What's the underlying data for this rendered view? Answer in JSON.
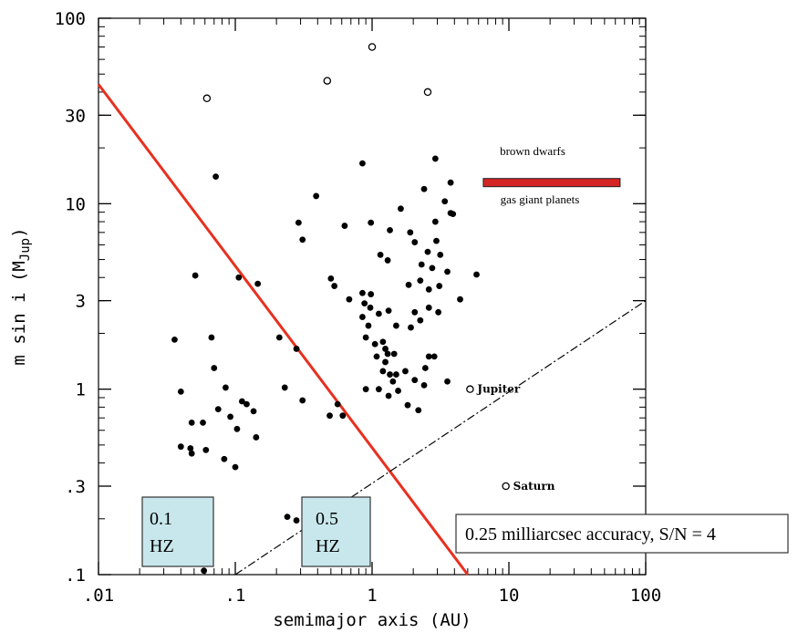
{
  "chart_data": {
    "type": "scatter",
    "xscale": "log",
    "yscale": "log",
    "xlim": [
      0.01,
      100
    ],
    "ylim": [
      0.1,
      100
    ],
    "xlabel": "semimajor axis (AU)",
    "ylabel_main": "m sin i (M",
    "ylabel_sub": "Jup",
    "ylabel_close": ")",
    "x_ticks": [
      {
        "value": 0.01,
        "label": ".01"
      },
      {
        "value": 0.1,
        "label": ".1"
      },
      {
        "value": 1,
        "label": "1"
      },
      {
        "value": 10,
        "label": "10"
      },
      {
        "value": 100,
        "label": "100"
      }
    ],
    "y_ticks": [
      {
        "value": 0.1,
        "label": ".1"
      },
      {
        "value": 0.3,
        "label": ".3"
      },
      {
        "value": 1,
        "label": "1"
      },
      {
        "value": 3,
        "label": "3"
      },
      {
        "value": 10,
        "label": "10"
      },
      {
        "value": 30,
        "label": "30"
      },
      {
        "value": 100,
        "label": "100"
      }
    ],
    "series": [
      {
        "marker": "filled-circle",
        "color": "#000000",
        "points": [
          [
            0.072,
            14
          ],
          [
            0.39,
            11
          ],
          [
            0.85,
            16.5
          ],
          [
            1.62,
            9.4
          ],
          [
            2.4,
            12
          ],
          [
            2.9,
            17.5
          ],
          [
            3.4,
            10.3
          ],
          [
            3.75,
            13
          ],
          [
            3.75,
            8.9
          ],
          [
            3.9,
            8.8
          ],
          [
            2.9,
            8
          ],
          [
            0.29,
            7.9
          ],
          [
            0.31,
            6.4
          ],
          [
            0.63,
            7.6
          ],
          [
            0.98,
            7.9
          ],
          [
            1.35,
            7.2
          ],
          [
            1.9,
            7
          ],
          [
            2.05,
            6.2
          ],
          [
            1.3,
            4.95
          ],
          [
            1.15,
            5.3
          ],
          [
            2.3,
            4.7
          ],
          [
            2.55,
            5.5
          ],
          [
            2.95,
            6.3
          ],
          [
            3.15,
            5.3
          ],
          [
            2.75,
            4.5
          ],
          [
            0.051,
            4.1
          ],
          [
            0.106,
            4.0
          ],
          [
            0.146,
            3.7
          ],
          [
            0.5,
            3.95
          ],
          [
            0.53,
            3.6
          ],
          [
            0.68,
            3.05
          ],
          [
            0.85,
            3.3
          ],
          [
            0.98,
            3.25
          ],
          [
            0.88,
            2.9
          ],
          [
            1.85,
            3.65
          ],
          [
            2.25,
            3.85
          ],
          [
            2.6,
            3.45
          ],
          [
            3.1,
            3.6
          ],
          [
            3.55,
            4.3
          ],
          [
            4.4,
            3.05
          ],
          [
            5.8,
            4.15
          ],
          [
            0.036,
            1.85
          ],
          [
            0.067,
            1.9
          ],
          [
            0.21,
            1.9
          ],
          [
            0.28,
            1.65
          ],
          [
            0.85,
            2.45
          ],
          [
            0.94,
            2.2
          ],
          [
            0.97,
            2.75
          ],
          [
            1.12,
            2.55
          ],
          [
            1.32,
            2.65
          ],
          [
            1.5,
            2.2
          ],
          [
            1.92,
            2.15
          ],
          [
            2.05,
            2.6
          ],
          [
            2.25,
            2.35
          ],
          [
            2.6,
            2.75
          ],
          [
            3.05,
            2.6
          ],
          [
            0.9,
            1.9
          ],
          [
            1.05,
            1.75
          ],
          [
            1.2,
            1.8
          ],
          [
            1.25,
            1.65
          ],
          [
            1.3,
            1.55
          ],
          [
            1.08,
            1.5
          ],
          [
            1.25,
            1.4
          ],
          [
            1.45,
            1.55
          ],
          [
            1.35,
            1.2
          ],
          [
            1.5,
            1.2
          ],
          [
            1.2,
            1.25
          ],
          [
            1.75,
            1.25
          ],
          [
            1.42,
            1.1
          ],
          [
            0.9,
            1.0
          ],
          [
            1.12,
            1.0
          ],
          [
            1.32,
            0.92
          ],
          [
            1.55,
            0.98
          ],
          [
            2.05,
            1.12
          ],
          [
            2.45,
            1.3
          ],
          [
            2.6,
            1.5
          ],
          [
            2.85,
            1.5
          ],
          [
            2.4,
            1.05
          ],
          [
            3.55,
            1.1
          ],
          [
            0.07,
            1.3
          ],
          [
            0.085,
            1.02
          ],
          [
            0.23,
            1.02
          ],
          [
            0.31,
            0.87
          ],
          [
            0.56,
            0.83
          ],
          [
            0.49,
            0.72
          ],
          [
            0.61,
            0.72
          ],
          [
            1.82,
            0.82
          ],
          [
            2.18,
            0.77
          ],
          [
            0.04,
            0.97
          ],
          [
            0.112,
            0.86
          ],
          [
            0.121,
            0.83
          ],
          [
            0.075,
            0.78
          ],
          [
            0.136,
            0.76
          ],
          [
            0.048,
            0.66
          ],
          [
            0.058,
            0.66
          ],
          [
            0.092,
            0.71
          ],
          [
            0.103,
            0.61
          ],
          [
            0.142,
            0.55
          ],
          [
            0.04,
            0.49
          ],
          [
            0.047,
            0.48
          ],
          [
            0.048,
            0.45
          ],
          [
            0.061,
            0.47
          ],
          [
            0.083,
            0.42
          ],
          [
            0.1,
            0.38
          ],
          [
            0.24,
            0.205
          ],
          [
            0.28,
            0.196
          ],
          [
            0.039,
            0.25
          ],
          [
            0.059,
            0.105
          ]
        ]
      },
      {
        "marker": "open-circle",
        "color": "#000000",
        "points": [
          [
            1.0,
            70
          ],
          [
            0.47,
            46
          ],
          [
            0.062,
            37
          ],
          [
            2.55,
            40
          ]
        ]
      }
    ],
    "planets": [
      {
        "name": "Jupiter",
        "x": 5.2,
        "y": 1.0
      },
      {
        "name": "Saturn",
        "x": 9.5,
        "y": 0.3
      }
    ],
    "lines": [
      {
        "name": "astrometric-limit",
        "color": "#e8301f",
        "style": "solid",
        "from": [
          0.01,
          44
        ],
        "to": [
          5.0,
          0.1
        ]
      },
      {
        "name": "detection-threshold",
        "color": "#000000",
        "style": "dash-dot",
        "from": [
          0.1,
          0.1
        ],
        "to": [
          100,
          3.0
        ]
      }
    ],
    "bar": {
      "color": "#d42424",
      "x": [
        6.5,
        65
      ],
      "y": 13
    },
    "annotations": {
      "brown_dwarfs": "brown dwarfs",
      "gas_giants": "gas giant planets",
      "accuracy": "0.25 milliarcsec accuracy, S/N = 4",
      "hz1_line1": "0.1",
      "hz1_line2": "HZ",
      "hz2_line1": "0.5",
      "hz2_line2": "HZ"
    },
    "hz_box_color": "#c7e7ec"
  }
}
